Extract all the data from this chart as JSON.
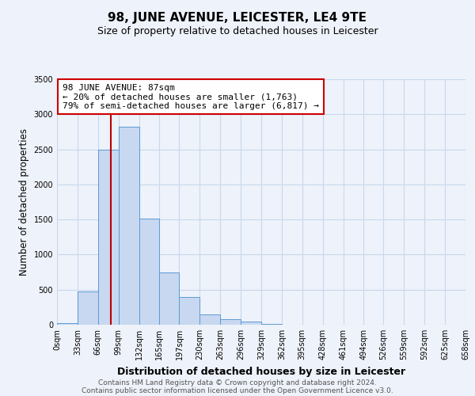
{
  "title": "98, JUNE AVENUE, LEICESTER, LE4 9TE",
  "subtitle": "Size of property relative to detached houses in Leicester",
  "xlabel": "Distribution of detached houses by size in Leicester",
  "ylabel": "Number of detached properties",
  "bar_edges": [
    0,
    33,
    66,
    99,
    132,
    165,
    197,
    230,
    263,
    296,
    329,
    362,
    395,
    428,
    461,
    494,
    526,
    559,
    592,
    625,
    658
  ],
  "bar_heights": [
    25,
    470,
    2500,
    2820,
    1510,
    745,
    390,
    150,
    75,
    50,
    10,
    5,
    0,
    0,
    0,
    0,
    0,
    0,
    0,
    0
  ],
  "bar_color": "#c8d8f0",
  "bar_edge_color": "#5b9bd5",
  "grid_color": "#c8d8ee",
  "property_line_x": 87,
  "property_line_color": "#bb0000",
  "annotation_text": "98 JUNE AVENUE: 87sqm\n← 20% of detached houses are smaller (1,763)\n79% of semi-detached houses are larger (6,817) →",
  "annotation_box_color": "white",
  "annotation_box_edge_color": "#cc0000",
  "ylim": [
    0,
    3500
  ],
  "tick_labels": [
    "0sqm",
    "33sqm",
    "66sqm",
    "99sqm",
    "132sqm",
    "165sqm",
    "197sqm",
    "230sqm",
    "263sqm",
    "296sqm",
    "329sqm",
    "362sqm",
    "395sqm",
    "428sqm",
    "461sqm",
    "494sqm",
    "526sqm",
    "559sqm",
    "592sqm",
    "625sqm",
    "658sqm"
  ],
  "footer_line1": "Contains HM Land Registry data © Crown copyright and database right 2024.",
  "footer_line2": "Contains public sector information licensed under the Open Government Licence v3.0.",
  "background_color": "#eef2fa",
  "title_fontsize": 11,
  "subtitle_fontsize": 9,
  "ylabel_fontsize": 8.5,
  "xlabel_fontsize": 9,
  "tick_fontsize": 7,
  "annotation_fontsize": 8,
  "footer_fontsize": 6.5
}
